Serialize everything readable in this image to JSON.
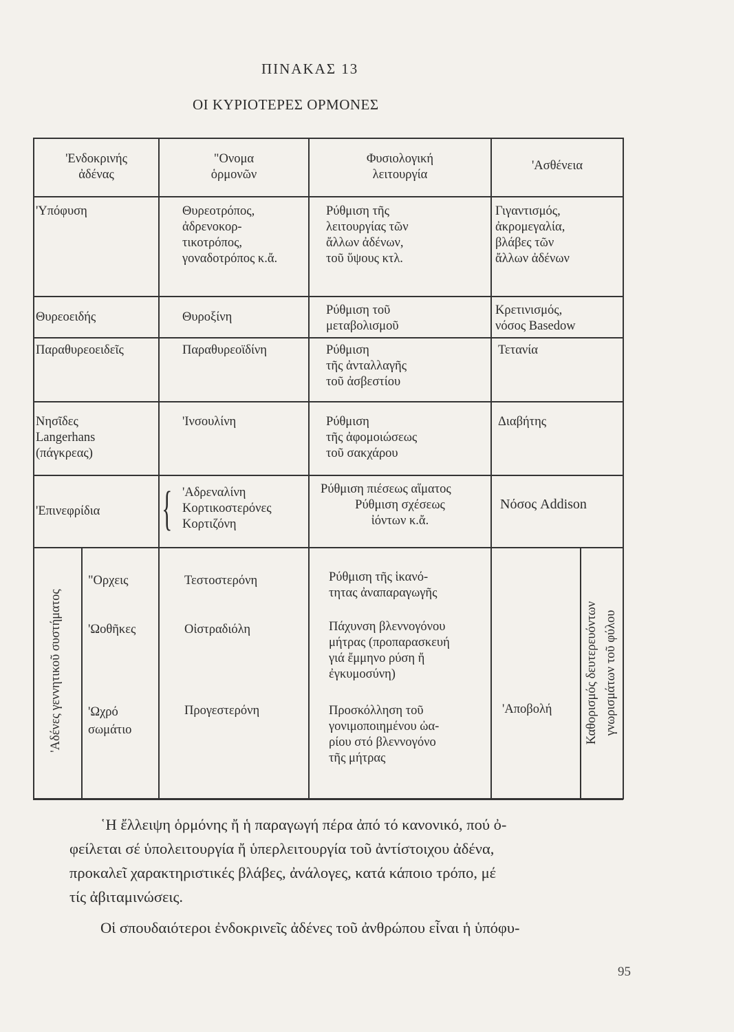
{
  "table_label": "ΠΙΝΑΚΑΣ  13",
  "table_title": "ΟΙ ΚΥΡΙΟΤΕΡΕΣ ΟΡΜΟΝΕΣ",
  "headers": [
    "'Ενδοκρινής\nἀδένας",
    "\"Ονομα\nὁρμονῶν",
    "Φυσιολογική\nλειτουργία",
    "'Ασθένεια"
  ],
  "rows": [
    {
      "gland": "'Υπόφυση",
      "hormone": "Θυρεοτρόπος,\nἀδρενοκορ-\nτικοτρόπος,\nγοναδοτρόπος κ.ἄ.",
      "function": "Ρύθμιση τῆς\nλειτουργίας τῶν\nἄλλων ἀδένων,\nτοῦ ὕψους κτλ.",
      "disease": "Γιγαντισμός,\nἀκρομεγαλία,\nβλάβες τῶν\nἄλλων ἀδένων"
    },
    {
      "gland": "Θυρεοειδής",
      "hormone": "Θυροξίνη",
      "function": "Ρύθμιση τοῦ\nμεταβολισμοῦ",
      "disease": "Κρετινισμός,\nνόσος Basedow"
    },
    {
      "gland": "Παραθυρεοειδεῖς",
      "hormone": "Παραθυρεοϊδίνη",
      "function": "Ρύθμιση\nτῆς ἀνταλλαγῆς\nτοῦ ἀσβεστίου",
      "disease": "Τετανία"
    },
    {
      "gland": "Νησῖδες\nLangerhans\n(πάγκρεας)",
      "hormone": "'Ινσουλίνη",
      "function": "Ρύθμιση\nτῆς ἀφομοιώσεως\nτοῦ σακχάρου",
      "disease": "Διαβήτης"
    },
    {
      "gland": "'Επινεφρίδια",
      "hormone": "'Αδρεναλίνη\nΚορτικοστερόνες\nΚορτιζόνη",
      "function_1": "Ρύθμιση πιέσεως αἵματος",
      "function_2": "Ρύθμιση σχέσεως\nἰόντων κ.ἄ.",
      "disease": "Νόσος Addison"
    }
  ],
  "reproductive": {
    "group_label": "'Αδένες γεννητικοῦ συστήματος",
    "side_label": "Καθορισμός δευτερευόντων\nγνωρισμάτων τοῦ φύλου",
    "items": [
      {
        "gland": "\"Ορχεις",
        "hormone": "Τεστοστερόνη",
        "function": "Ρύθμιση τῆς ἱκανό-\nτητας ἀναπαραγωγῆς",
        "disease": ""
      },
      {
        "gland": "'Ωοθῆκες",
        "hormone": "Οἰστραδιόλη",
        "function": "Πάχυνση βλεννογόνου\nμήτρας (προπαρασκευή\nγιά ἔμμηνο ρύση ἤ\nἐγκυμοσύνη)",
        "disease": ""
      },
      {
        "gland": "'Ωχρό\nσωμάτιο",
        "hormone": "Προγεστερόνη",
        "function": "Προσκόλληση τοῦ\nγονιμοποιημένου ὠα-\nρίου στό βλεννογόνο\nτῆς μήτρας",
        "disease": "'Αποβολή"
      }
    ]
  },
  "paragraph": [
    "῾Η ἔλλειψη ὁρμόνης ἤ ἡ παραγωγή πέρα ἀπό τό κανονικό, πού ὀ-",
    "φείλεται σέ ὑπολειτουργία ἤ ὑπερλειτουργία τοῦ ἀντίστοιχου ἀδένα,",
    "προκαλεῖ χαρακτηριστικές βλάβες, ἀνάλογες, κατά κάποιο τρόπο, μέ",
    "τίς ἀβιταμινώσεις.",
    "Οἱ σπουδαιότεροι ἐνδοκρινεῖς ἀδένες τοῦ ἀνθρώπου εἶναι ἡ ὑπόφυ-"
  ],
  "page_number": "95"
}
